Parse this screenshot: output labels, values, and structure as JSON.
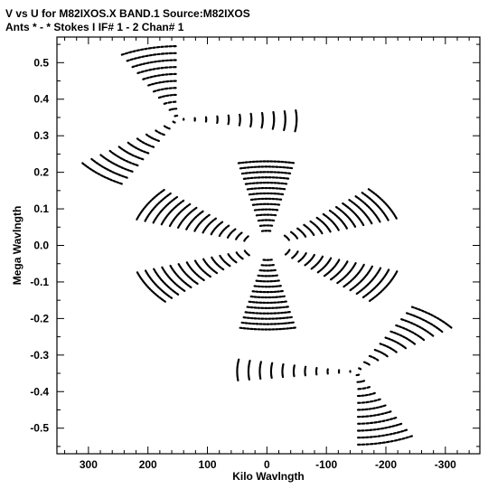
{
  "header": {
    "line1": "V vs U for M82IXOS.X BAND.1   Source:M82IXOS",
    "line2": "Ants * - *     Stokes I  IF# 1 - 2  Chan# 1"
  },
  "chart_data": {
    "type": "scatter",
    "title": "V vs U for M82IXOS.X BAND.1   Source:M82IXOS",
    "subtitle": "Ants * - *     Stokes I  IF# 1 - 2  Chan# 1",
    "xlabel": "Kilo Wavlngth",
    "ylabel": "Mega Wavlngth",
    "xlim": [
      353,
      -358
    ],
    "ylim": [
      -0.57,
      0.57
    ],
    "x_ticks": [
      300,
      200,
      100,
      0,
      -100,
      -200,
      -300
    ],
    "x_tick_labels": [
      "300",
      "200",
      "100",
      "0",
      "-100",
      "-200",
      "-300"
    ],
    "y_ticks": [
      0.5,
      0.4,
      0.3,
      0.2,
      0.1,
      0.0,
      -0.1,
      -0.2,
      -0.3,
      -0.4,
      -0.5
    ],
    "y_tick_labels": [
      "0.5",
      "0.4",
      "0.3",
      "0.2",
      "0.1",
      "0.0",
      "-0.1",
      "-0.2",
      "-0.3",
      "-0.4",
      "-0.5"
    ],
    "grid": false,
    "marker_color": "#000000",
    "tracks": [
      {
        "center": [
          0,
          0
        ],
        "r1": 40,
        "r2": 230,
        "n": 14,
        "angles": [
          [
            18,
            42
          ],
          [
            78,
            102
          ],
          [
            138,
            162
          ],
          [
            198,
            222
          ],
          [
            258,
            282
          ],
          [
            318,
            342
          ]
        ]
      },
      {
        "center": [
          150,
          0.345
        ],
        "r1": 10,
        "r2": 200,
        "n": 11,
        "angles": [
          [
            -62,
            -36
          ],
          [
            62,
            90
          ],
          [
            173,
            190
          ]
        ]
      },
      {
        "center": [
          -150,
          -0.345
        ],
        "r1": 10,
        "r2": 200,
        "n": 11,
        "angles": [
          [
            118,
            144
          ],
          [
            242,
            270
          ],
          [
            -7,
            10
          ]
        ]
      }
    ]
  }
}
